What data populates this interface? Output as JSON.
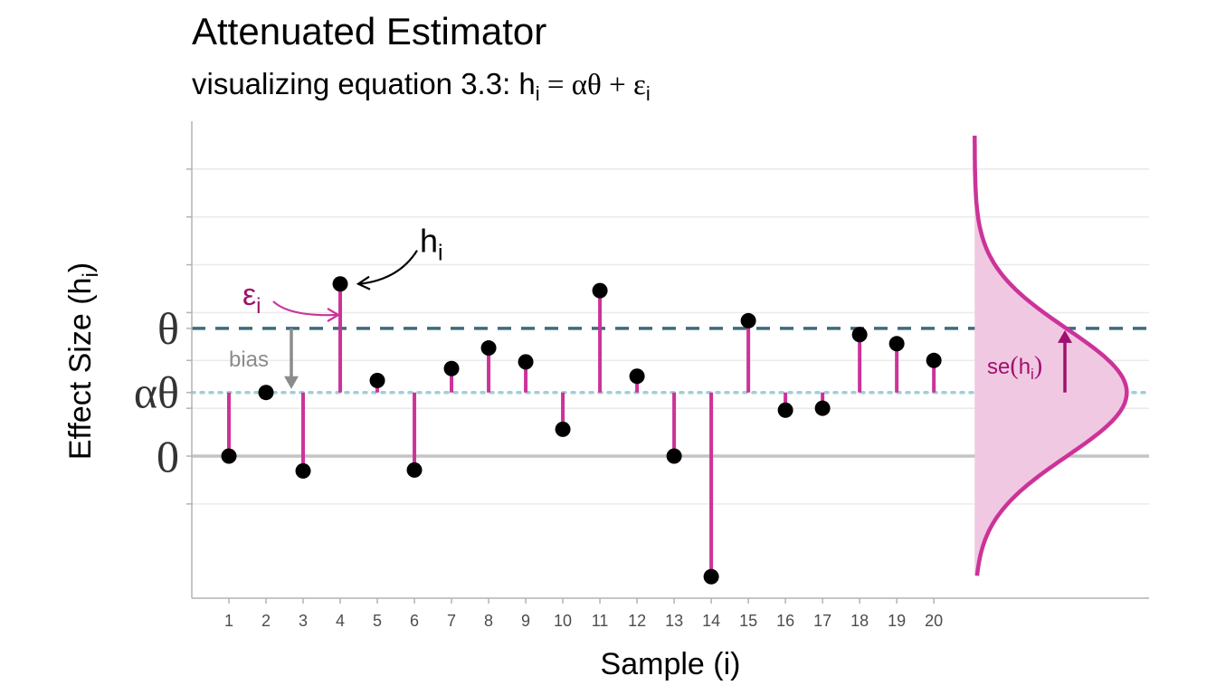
{
  "title": "Attenuated Estimator",
  "subtitle": {
    "prefix": "visualizing equation 3.3: h",
    "sub": "i",
    "mid": " = αθ + ε",
    "sub2": "i"
  },
  "colors": {
    "stem": "#cc3399",
    "point": "#000000",
    "theta_line": "#3d6b7d",
    "alpha_theta_line": "#9fcfd9",
    "zero_line": "#c4c4c4",
    "grid": "#ebebeb",
    "density_fill": "#f0c8e2",
    "density_line": "#cc3399",
    "se_arrow": "#a0106e",
    "bias": "#8c8c8c",
    "epsilon": "#a0106e"
  },
  "chart_data": {
    "type": "scatter",
    "title": "Attenuated Estimator",
    "xlabel": "Sample (i)",
    "ylabel": "Effect Size (h",
    "ylabel_sub": "i",
    "ylabel_close": ")",
    "x": [
      1,
      2,
      3,
      4,
      5,
      6,
      7,
      8,
      9,
      10,
      11,
      12,
      13,
      14,
      15,
      16,
      17,
      18,
      19,
      20
    ],
    "xticks": [
      "1",
      "2",
      "3",
      "4",
      "5",
      "6",
      "7",
      "8",
      "9",
      "10",
      "11",
      "12",
      "13",
      "14",
      "15",
      "16",
      "17",
      "18",
      "19",
      "20"
    ],
    "y": [
      0.0,
      1.33,
      -0.31,
      3.6,
      1.58,
      -0.29,
      1.83,
      2.26,
      1.97,
      0.56,
      3.46,
      1.67,
      0.0,
      -2.52,
      2.83,
      0.96,
      1.0,
      2.54,
      2.35,
      2.0
    ],
    "alpha_theta": 1.33,
    "theta": 2.67,
    "zero": 0,
    "ylim": [
      -2.97,
      7.0
    ],
    "xlim": [
      0,
      25.8
    ],
    "y_axis_labels": [
      {
        "text": "θ",
        "value": 2.67
      },
      {
        "text": "αθ",
        "value": 1.33
      },
      {
        "text": "0",
        "value": 0
      }
    ],
    "density": {
      "center": 1.33,
      "sd": 1.33,
      "y_from": -2.5,
      "y_to": 6.7,
      "x_base": 21.1,
      "width": 4.1
    },
    "grid": {
      "major": true,
      "minor_only_visible": true
    }
  },
  "annotations": {
    "h_label": "h",
    "h_sub": "i",
    "epsilon_label": "ε",
    "epsilon_sub": "i",
    "bias_label": "bias",
    "se_label_prefix": "se",
    "se_label_inner": "h",
    "se_label_sub": "i"
  }
}
